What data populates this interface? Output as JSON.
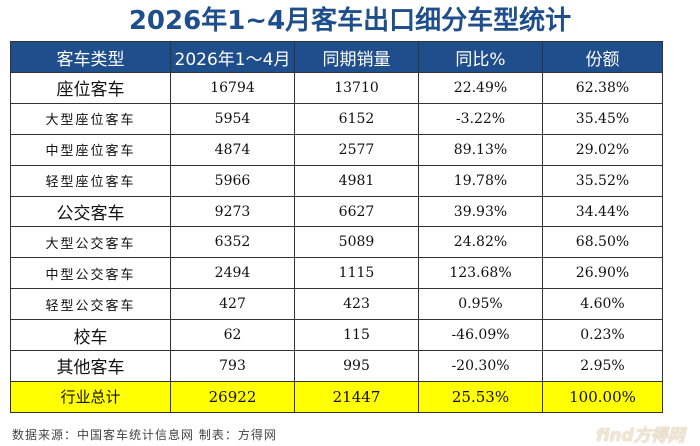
{
  "title": "2026年1~4月客车出口细分车型统计",
  "table": {
    "headers": [
      "客车类型",
      "2026年1～4月",
      "同期销量",
      "同比%",
      "份额"
    ],
    "rows": [
      {
        "type": "座位客车",
        "current": "16794",
        "previous": "13710",
        "yoy": "22.49%",
        "share": "62.38%",
        "level": "main"
      },
      {
        "type": "大型座位客车",
        "current": "5954",
        "previous": "6152",
        "yoy": "-3.22%",
        "share": "35.45%",
        "level": "sub"
      },
      {
        "type": "中型座位客车",
        "current": "4874",
        "previous": "2577",
        "yoy": "89.13%",
        "share": "29.02%",
        "level": "sub"
      },
      {
        "type": "轻型座位客车",
        "current": "5966",
        "previous": "4981",
        "yoy": "19.78%",
        "share": "35.52%",
        "level": "sub"
      },
      {
        "type": "公交客车",
        "current": "9273",
        "previous": "6627",
        "yoy": "39.93%",
        "share": "34.44%",
        "level": "main"
      },
      {
        "type": "大型公交客车",
        "current": "6352",
        "previous": "5089",
        "yoy": "24.82%",
        "share": "68.50%",
        "level": "sub"
      },
      {
        "type": "中型公交客车",
        "current": "2494",
        "previous": "1115",
        "yoy": "123.68%",
        "share": "26.90%",
        "level": "sub"
      },
      {
        "type": "轻型公交客车",
        "current": "427",
        "previous": "423",
        "yoy": "0.95%",
        "share": "4.60%",
        "level": "sub"
      },
      {
        "type": "校车",
        "current": "62",
        "previous": "115",
        "yoy": "-46.09%",
        "share": "0.23%",
        "level": "main"
      },
      {
        "type": "其他客车",
        "current": "793",
        "previous": "995",
        "yoy": "-20.30%",
        "share": "2.95%",
        "level": "main"
      }
    ],
    "total": {
      "type": "行业总计",
      "current": "26922",
      "previous": "21447",
      "yoy": "25.53%",
      "share": "100.00%"
    }
  },
  "footer": "数据来源：中国客车统计信息网 制表：方得网",
  "watermark": "find方得网",
  "colors": {
    "header_bg": "#1f4e8c",
    "title": "#1f4e8c",
    "total_bg": "#ffff00"
  }
}
